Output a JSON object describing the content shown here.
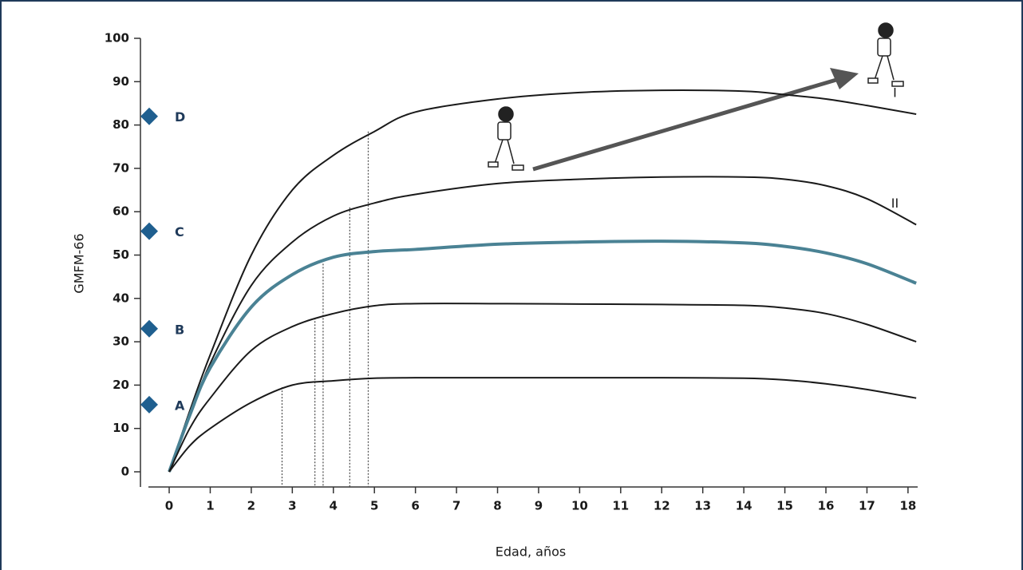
{
  "chart_data": {
    "type": "line",
    "xlabel": "Edad, años",
    "ylabel": "GMFM-66",
    "xlim": [
      -0.5,
      18.5
    ],
    "xticks": [
      0,
      1,
      2,
      3,
      4,
      5,
      6,
      7,
      8,
      9,
      10,
      11,
      12,
      13,
      14,
      15,
      16,
      17,
      18
    ],
    "ylim": [
      -3.5,
      100
    ],
    "yticks": [
      0,
      10,
      20,
      30,
      40,
      50,
      60,
      70,
      80,
      90,
      100
    ],
    "x": [
      0,
      0.5,
      1,
      2,
      3,
      4,
      5,
      6,
      8,
      10,
      12,
      14,
      15,
      16,
      17,
      18.2
    ],
    "series": [
      {
        "name": "I",
        "color": "#1a1a1a",
        "values": [
          0,
          14,
          27,
          50,
          65,
          73,
          78.5,
          83,
          86,
          87.5,
          88,
          87.8,
          87,
          86,
          84.5,
          82.5
        ]
      },
      {
        "name": "II",
        "color": "#1a1a1a",
        "values": [
          0,
          13,
          25,
          43,
          53,
          59,
          62,
          64,
          66.5,
          67.5,
          68,
          68,
          67.5,
          66,
          63,
          57
        ]
      },
      {
        "color": "#4a8294",
        "values": [
          0,
          13,
          24,
          38,
          45.5,
          49.5,
          50.8,
          51.3,
          52.5,
          53,
          53.2,
          52.8,
          52,
          50.5,
          48,
          43.5
        ]
      },
      {
        "color": "#1a1a1a",
        "values": [
          0,
          10,
          17,
          28,
          33.5,
          36.5,
          38.3,
          38.8,
          38.8,
          38.7,
          38.6,
          38.4,
          37.8,
          36.5,
          34,
          30
        ]
      },
      {
        "color": "#1a1a1a",
        "values": [
          0,
          6,
          10,
          16,
          20,
          21,
          21.6,
          21.7,
          21.7,
          21.7,
          21.7,
          21.6,
          21.2,
          20.3,
          19,
          17
        ]
      }
    ],
    "markers": {
      "color": "#1f5f8f",
      "labels": [
        "A",
        "B",
        "C",
        "D"
      ],
      "values": [
        15.5,
        33,
        55.5,
        82
      ]
    },
    "reference_lines": [
      {
        "x": 2.75,
        "y": 19.5
      },
      {
        "x": 3.55,
        "y": 35.5
      },
      {
        "x": 3.75,
        "y": 48
      },
      {
        "x": 4.4,
        "y": 61
      },
      {
        "x": 4.85,
        "y": 78.5
      }
    ]
  }
}
